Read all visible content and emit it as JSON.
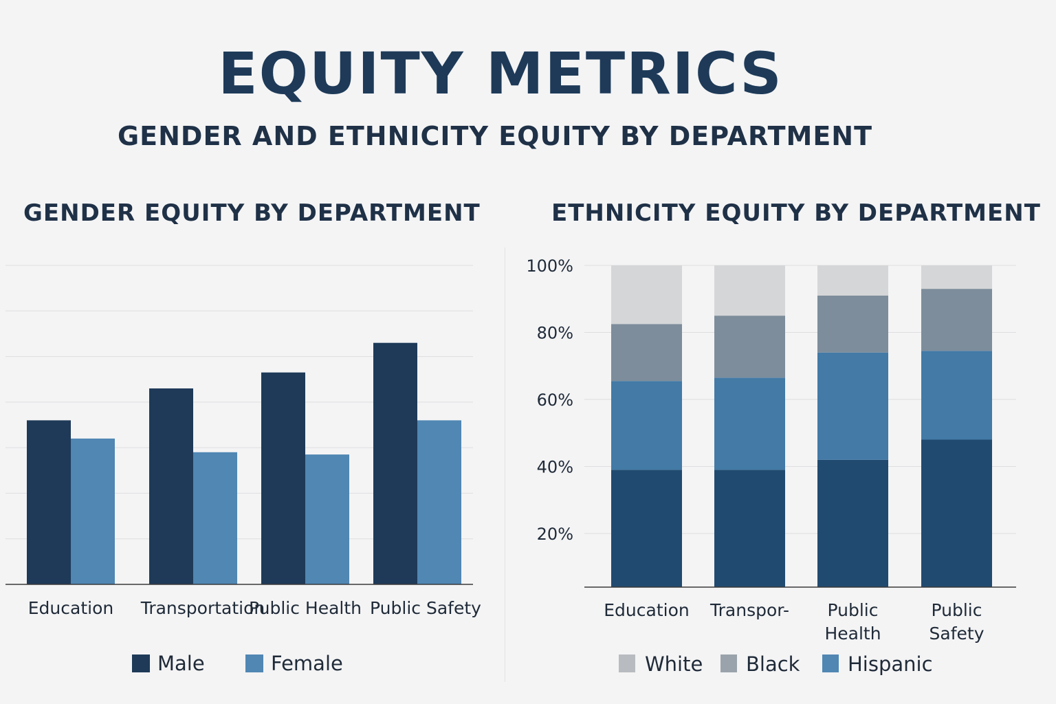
{
  "header": {
    "title": "EQUITY METRICS",
    "subtitle": "GENDER AND ETHNICITY EQUITY BY DEPARTMENT"
  },
  "chart_data": [
    {
      "type": "bar",
      "title": "GENDER EQUITY BY DEPARTMENT",
      "categories": [
        "Education",
        "Transportation",
        "Public Health",
        "Public Safety"
      ],
      "series": [
        {
          "name": "Male",
          "color": "#1e3a58",
          "values": [
            36,
            43,
            46.5,
            53
          ]
        },
        {
          "name": "Female",
          "color": "#5087b3",
          "values": [
            32,
            29,
            28.5,
            36
          ]
        }
      ],
      "ylim": [
        0,
        70
      ],
      "grid": true,
      "y_ticks_visible": false,
      "legend": "bottom"
    },
    {
      "type": "bar",
      "stacked": true,
      "title": "ETHNICITY EQUITY BY DEPARTMENT",
      "categories": [
        "Education",
        "Transpor-",
        "Public Health",
        "Public Safety"
      ],
      "category_lines": [
        [
          "Education"
        ],
        [
          "Transpor-"
        ],
        [
          "Public",
          "Health"
        ],
        [
          "Public",
          "Safety"
        ]
      ],
      "series": [
        {
          "name": "",
          "color": "#214a70",
          "values": [
            35,
            35,
            38,
            44
          ]
        },
        {
          "name": "Hispanic",
          "color": "#437aa6",
          "values": [
            26.5,
            27.5,
            32,
            26.5
          ]
        },
        {
          "name": "Black",
          "color": "#7d8d9b",
          "values": [
            17,
            18.5,
            17,
            18.5
          ]
        },
        {
          "name": "White",
          "color": "#d5d6d8",
          "values": [
            17.5,
            15,
            9,
            7
          ]
        }
      ],
      "y_ticks": [
        "20%",
        "40%",
        "60%",
        "80%",
        "100%"
      ],
      "ylim": [
        0,
        96
      ],
      "grid": true,
      "legend": "bottom",
      "legend_order": [
        "White",
        "Black",
        "Hispanic"
      ]
    }
  ]
}
